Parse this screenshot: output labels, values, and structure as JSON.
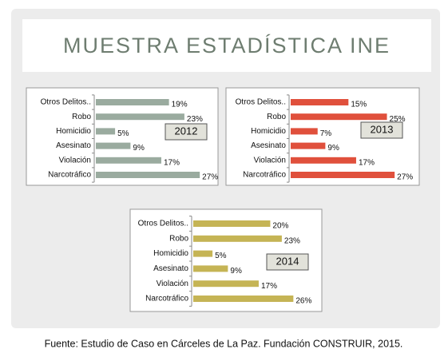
{
  "slide": {
    "title": "MUESTRA ESTADÍSTICA INE",
    "source": "Fuente: Estudio de Caso en Cárceles de La Paz. Fundación CONSTRUIR, 2015."
  },
  "chart_data": [
    {
      "type": "bar",
      "orientation": "horizontal",
      "annotation": "2012",
      "color": "#9aab9f",
      "categories": [
        "Otros Delitos..",
        "Robo",
        "Homicidio",
        "Asesinato",
        "Violación",
        "Narcotráfico"
      ],
      "values": [
        19,
        23,
        5,
        9,
        17,
        27
      ],
      "value_labels": [
        "19%",
        "23%",
        "5%",
        "9%",
        "17%",
        "27%"
      ],
      "xlim": [
        0,
        28
      ]
    },
    {
      "type": "bar",
      "orientation": "horizontal",
      "annotation": "2013",
      "color": "#e0503c",
      "categories": [
        "Otros Delitos..",
        "Robo",
        "Homicidio",
        "Asesinato",
        "Violación",
        "Narcotráfico"
      ],
      "values": [
        15,
        25,
        7,
        9,
        17,
        27
      ],
      "value_labels": [
        "15%",
        "25%",
        "7%",
        "9%",
        "17%",
        "27%"
      ],
      "xlim": [
        0,
        28
      ]
    },
    {
      "type": "bar",
      "orientation": "horizontal",
      "annotation": "2014",
      "color": "#c5b455",
      "categories": [
        "Otros Delitos..",
        "Robo",
        "Homicidio",
        "Asesinato",
        "Violación",
        "Narcotráfico"
      ],
      "values": [
        20,
        23,
        5,
        9,
        17,
        26
      ],
      "value_labels": [
        "20%",
        "23%",
        "5%",
        "9%",
        "17%",
        "26%"
      ],
      "xlim": [
        0,
        28
      ]
    }
  ]
}
